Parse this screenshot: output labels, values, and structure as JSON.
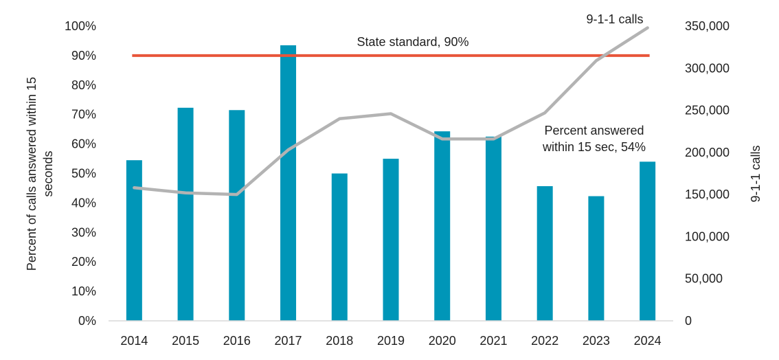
{
  "chart_data": {
    "type": "bar",
    "categories": [
      "2014",
      "2015",
      "2016",
      "2017",
      "2018",
      "2019",
      "2020",
      "2021",
      "2022",
      "2023",
      "2024"
    ],
    "series": [
      {
        "axis": "left",
        "kind": "bar",
        "color": "#0096B8",
        "values": [
          54.5,
          72.3,
          71.5,
          93.5,
          50.0,
          55.0,
          64.3,
          62.5,
          45.7,
          42.3,
          54.0
        ]
      },
      {
        "name": "9-1-1 calls",
        "axis": "right",
        "kind": "line",
        "color": "#B3B3B3",
        "values": [
          158000,
          152000,
          150000,
          203000,
          240000,
          246000,
          216000,
          216000,
          247000,
          309000,
          348000
        ]
      }
    ],
    "reference_line": {
      "label": "State standard, 90%",
      "value": 90,
      "color": "#E8553A"
    },
    "annotations": {
      "line_label": "9-1-1 calls",
      "bar_label_1": "Percent answered",
      "bar_label_2": "within 15 sec, 54%"
    },
    "ylabel_left": [
      "Percent of calls answered within 15",
      "seconds"
    ],
    "ylabel_right": "9-1-1 calls",
    "ylim_left": [
      0,
      100
    ],
    "ylim_right": [
      0,
      350000
    ],
    "yticks_left": [
      "0%",
      "10%",
      "20%",
      "30%",
      "40%",
      "50%",
      "60%",
      "70%",
      "80%",
      "90%",
      "100%"
    ],
    "yticks_right": [
      "0",
      "50,000",
      "100,000",
      "150,000",
      "200,000",
      "250,000",
      "300,000",
      "350,000"
    ],
    "grid": false
  }
}
